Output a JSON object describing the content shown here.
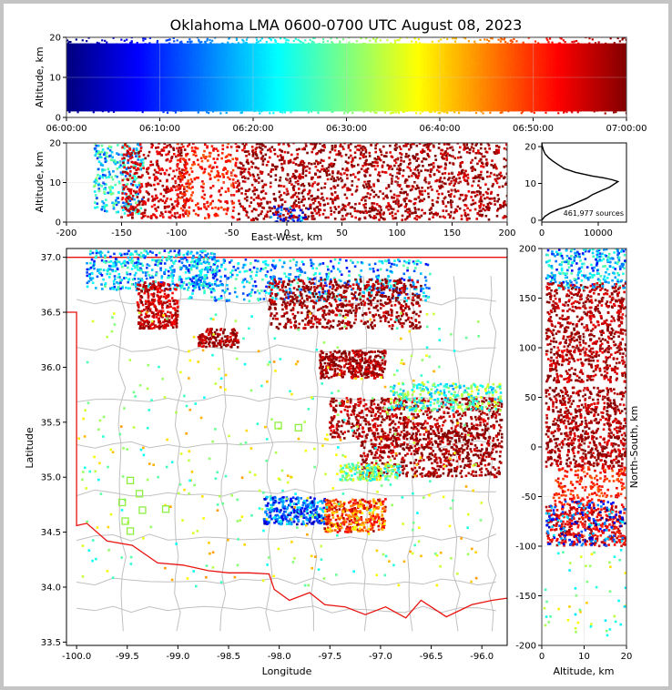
{
  "chart_data": [
    {
      "type": "scatter",
      "panel": "altitude-vs-time",
      "title": "Oklahoma LMA 0600-0700 UTC August 08, 2023",
      "xlabel": "",
      "ylabel": "Altitude, km",
      "x_ticks": [
        "06:00:00",
        "06:10:00",
        "06:20:00",
        "06:30:00",
        "06:40:00",
        "06:50:00",
        "07:00:00"
      ],
      "xlim": [
        "06:00:00",
        "07:00:00"
      ],
      "y_ticks": [
        0,
        10,
        20
      ],
      "ylim": [
        0,
        20
      ],
      "color_by": "time",
      "colormap": "jet",
      "grid": true,
      "density": [
        {
          "x_min": 0,
          "x_max": 60,
          "y_min": 1,
          "y_max": 20,
          "count": 2600
        }
      ]
    },
    {
      "type": "scatter",
      "panel": "altitude-vs-east-west",
      "xlabel": "East-West, km",
      "ylabel": "Altitude, km",
      "x_ticks": [
        -200,
        -150,
        -100,
        -50,
        0,
        50,
        100,
        150,
        200
      ],
      "xlim": [
        -200,
        200
      ],
      "y_ticks": [
        0,
        10,
        20
      ],
      "ylim": [
        0,
        20
      ],
      "color_by": "time",
      "colormap": "jet",
      "grid": true,
      "density": [
        {
          "x_min": -175,
          "x_max": -130,
          "y_min": 2,
          "y_max": 20,
          "count": 280,
          "time": 0.35
        },
        {
          "x_min": -150,
          "x_max": -90,
          "y_min": 1,
          "y_max": 20,
          "count": 380,
          "time": 0.93
        },
        {
          "x_min": -100,
          "x_max": -45,
          "y_min": 1,
          "y_max": 20,
          "count": 280,
          "time": 0.85
        },
        {
          "x_min": -45,
          "x_max": 200,
          "y_min": 0.5,
          "y_max": 20,
          "count": 1500,
          "time": 0.96
        },
        {
          "x_min": -15,
          "x_max": 20,
          "y_min": 0,
          "y_max": 4,
          "count": 40,
          "time": 0.2
        }
      ]
    },
    {
      "type": "line",
      "panel": "altitude-histogram",
      "xlabel": "",
      "ylabel": "",
      "annotation": "461,977 sources",
      "x_ticks": [
        0,
        10000
      ],
      "xlim": [
        0,
        15000
      ],
      "y_ticks": [
        0,
        10,
        20
      ],
      "ylim": [
        -0.5,
        21
      ],
      "x": [
        0,
        500,
        1500,
        3000,
        5000,
        6500,
        8000,
        9000,
        10500,
        12000,
        13500,
        12500,
        11000,
        9000,
        7500,
        6000,
        5000,
        4000,
        3000,
        2000,
        1200,
        600,
        300,
        100,
        0
      ],
      "y": [
        0,
        1,
        2,
        3,
        4,
        5,
        6,
        7,
        8,
        9,
        10.5,
        11,
        11.5,
        12,
        12.5,
        13,
        13.5,
        14,
        15,
        16,
        17,
        18,
        19,
        20,
        21
      ]
    },
    {
      "type": "scatter",
      "panel": "latitude-vs-longitude",
      "xlabel": "Longitude",
      "ylabel": "Latitude",
      "x_ticks": [
        "-100.0",
        "-99.5",
        "-99.0",
        "-98.5",
        "-98.0",
        "-97.5",
        "-97.0",
        "-96.5",
        "-96.0"
      ],
      "xlim": [
        -100.1,
        -95.75
      ],
      "y_ticks": [
        "33.5",
        "34.0",
        "34.5",
        "35.0",
        "35.5",
        "36.0",
        "36.5",
        "37.0"
      ],
      "ylim": [
        33.47,
        37.08
      ],
      "boundary_color": "#e8130f",
      "county_line_color": "#c0c0c0",
      "station_marker_color": "#8cf040",
      "stations": [
        {
          "lon": -99.47,
          "lat": 34.97
        },
        {
          "lon": -99.38,
          "lat": 34.85
        },
        {
          "lon": -99.55,
          "lat": 34.77
        },
        {
          "lon": -99.35,
          "lat": 34.7
        },
        {
          "lon": -99.12,
          "lat": 34.71
        },
        {
          "lon": -99.52,
          "lat": 34.6
        },
        {
          "lon": -99.47,
          "lat": 34.51
        },
        {
          "lon": -98.01,
          "lat": 35.47
        },
        {
          "lon": -97.81,
          "lat": 35.45
        }
      ],
      "density": [
        {
          "x_min": -99.9,
          "x_max": -98.6,
          "y_min": 36.7,
          "y_max": 37.06,
          "count": 480,
          "time": 0.3
        },
        {
          "x_min": -99.4,
          "x_max": -99.0,
          "y_min": 36.35,
          "y_max": 36.78,
          "count": 320,
          "time": 0.93
        },
        {
          "x_min": -98.9,
          "x_max": -96.5,
          "y_min": 36.6,
          "y_max": 36.98,
          "count": 520,
          "time": 0.3
        },
        {
          "x_min": -98.1,
          "x_max": -96.6,
          "y_min": 36.35,
          "y_max": 36.8,
          "count": 700,
          "time": 0.97
        },
        {
          "x_min": -98.8,
          "x_max": -98.4,
          "y_min": 36.18,
          "y_max": 36.35,
          "count": 150,
          "time": 0.96
        },
        {
          "x_min": -97.6,
          "x_max": -96.95,
          "y_min": 35.9,
          "y_max": 36.15,
          "count": 360,
          "time": 0.96
        },
        {
          "x_min": -97.5,
          "x_max": -95.8,
          "y_min": 35.35,
          "y_max": 35.72,
          "count": 700,
          "time": 0.96
        },
        {
          "x_min": -96.9,
          "x_max": -95.8,
          "y_min": 35.6,
          "y_max": 35.85,
          "count": 300,
          "time": 0.45
        },
        {
          "x_min": -97.2,
          "x_max": -95.8,
          "y_min": 35.0,
          "y_max": 35.4,
          "count": 600,
          "time": 0.97
        },
        {
          "x_min": -97.4,
          "x_max": -96.8,
          "y_min": 34.97,
          "y_max": 35.12,
          "count": 200,
          "time": 0.5
        },
        {
          "x_min": -98.15,
          "x_max": -97.55,
          "y_min": 34.57,
          "y_max": 34.82,
          "count": 300,
          "time": 0.2
        },
        {
          "x_min": -97.55,
          "x_max": -96.95,
          "y_min": 34.5,
          "y_max": 34.8,
          "count": 380,
          "time": 0.8
        },
        {
          "x_min": -100.0,
          "x_max": -96.0,
          "y_min": 34.0,
          "y_max": 36.5,
          "count": 420,
          "time": 0.55
        }
      ]
    },
    {
      "type": "scatter",
      "panel": "north-south-vs-altitude",
      "xlabel": "Altitude, km",
      "ylabel": "North-South, km",
      "x_ticks": [
        0,
        10,
        20
      ],
      "xlim": [
        0,
        20
      ],
      "y_ticks": [
        -200,
        -150,
        -100,
        -50,
        0,
        50,
        100,
        150,
        200
      ],
      "ylim": [
        -200,
        200
      ],
      "color_by": "time",
      "colormap": "jet",
      "grid": true,
      "density": [
        {
          "x_min": 1,
          "x_max": 20,
          "y_min": 160,
          "y_max": 200,
          "count": 280,
          "time": 0.3
        },
        {
          "x_min": 1,
          "x_max": 20,
          "y_min": 95,
          "y_max": 165,
          "count": 500,
          "time": 0.95
        },
        {
          "x_min": 1,
          "x_max": 20,
          "y_min": 65,
          "y_max": 100,
          "count": 260,
          "time": 0.95
        },
        {
          "x_min": 1,
          "x_max": 20,
          "y_min": -20,
          "y_max": 60,
          "count": 700,
          "time": 0.96
        },
        {
          "x_min": 2,
          "x_max": 20,
          "y_min": -60,
          "y_max": -20,
          "count": 200,
          "time": 0.85
        },
        {
          "x_min": 1,
          "x_max": 20,
          "y_min": -100,
          "y_max": -60,
          "count": 380,
          "time": 0.9
        },
        {
          "x_min": 1,
          "x_max": 20,
          "y_min": -100,
          "y_max": -55,
          "count": 160,
          "time": 0.2
        },
        {
          "x_min": 0,
          "x_max": 20,
          "y_min": -190,
          "y_max": -100,
          "count": 50,
          "time": 0.5
        }
      ]
    }
  ]
}
